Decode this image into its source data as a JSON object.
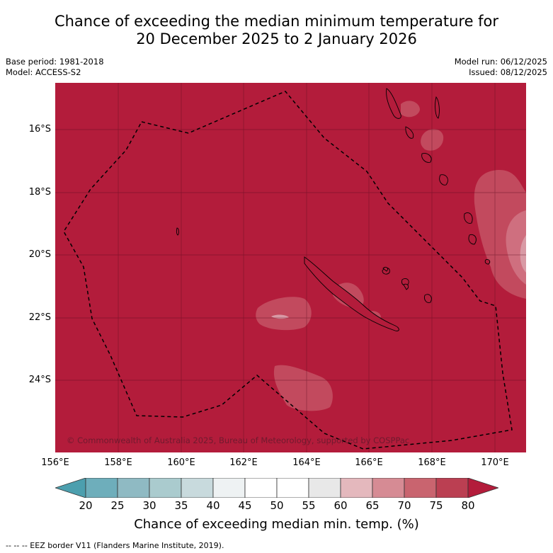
{
  "header": {
    "title_line1": "Chance of exceeding the median minimum temperature for",
    "title_line2": "20 December 2025 to 2 January 2026",
    "base_period": "Base period: 1981-2018",
    "model": "Model: ACCESS-S2",
    "model_run": "Model run: 06/12/2025",
    "issued": "Issued: 08/12/2025"
  },
  "map": {
    "copyright": "© Commonwealth of Australia 2025, Bureau of Meteorology, supported by COSPPac",
    "lat_labels": [
      "16°S",
      "18°S",
      "20°S",
      "22°S",
      "24°S"
    ],
    "lon_labels": [
      "156°E",
      "158°E",
      "160°E",
      "162°E",
      "164°E",
      "166°E",
      "168°E",
      "170°E"
    ],
    "colors": {
      "background": "#b31c3b",
      "band_70_75": "#c24a5e",
      "band_65_70": "#cf6f7f",
      "band_60_65": "#d99aa5"
    }
  },
  "colorbar": {
    "ticks": [
      "20",
      "25",
      "30",
      "35",
      "40",
      "45",
      "50",
      "55",
      "60",
      "65",
      "70",
      "75",
      "80"
    ],
    "colors": [
      "#4c9fae",
      "#6eaebb",
      "#8fbac3",
      "#aacbce",
      "#c8dadd",
      "#eef2f3",
      "#ffffff",
      "#ffffff",
      "#e8e8e8",
      "#e4b8bd",
      "#d68b94",
      "#c9646f",
      "#bb3f52",
      "#b31c3b"
    ],
    "label": "Chance of exceeding median min. temp. (%)"
  },
  "footer": {
    "legend": "--  --  -- EEZ border V11 (Flanders Marine Institute, 2019)."
  }
}
